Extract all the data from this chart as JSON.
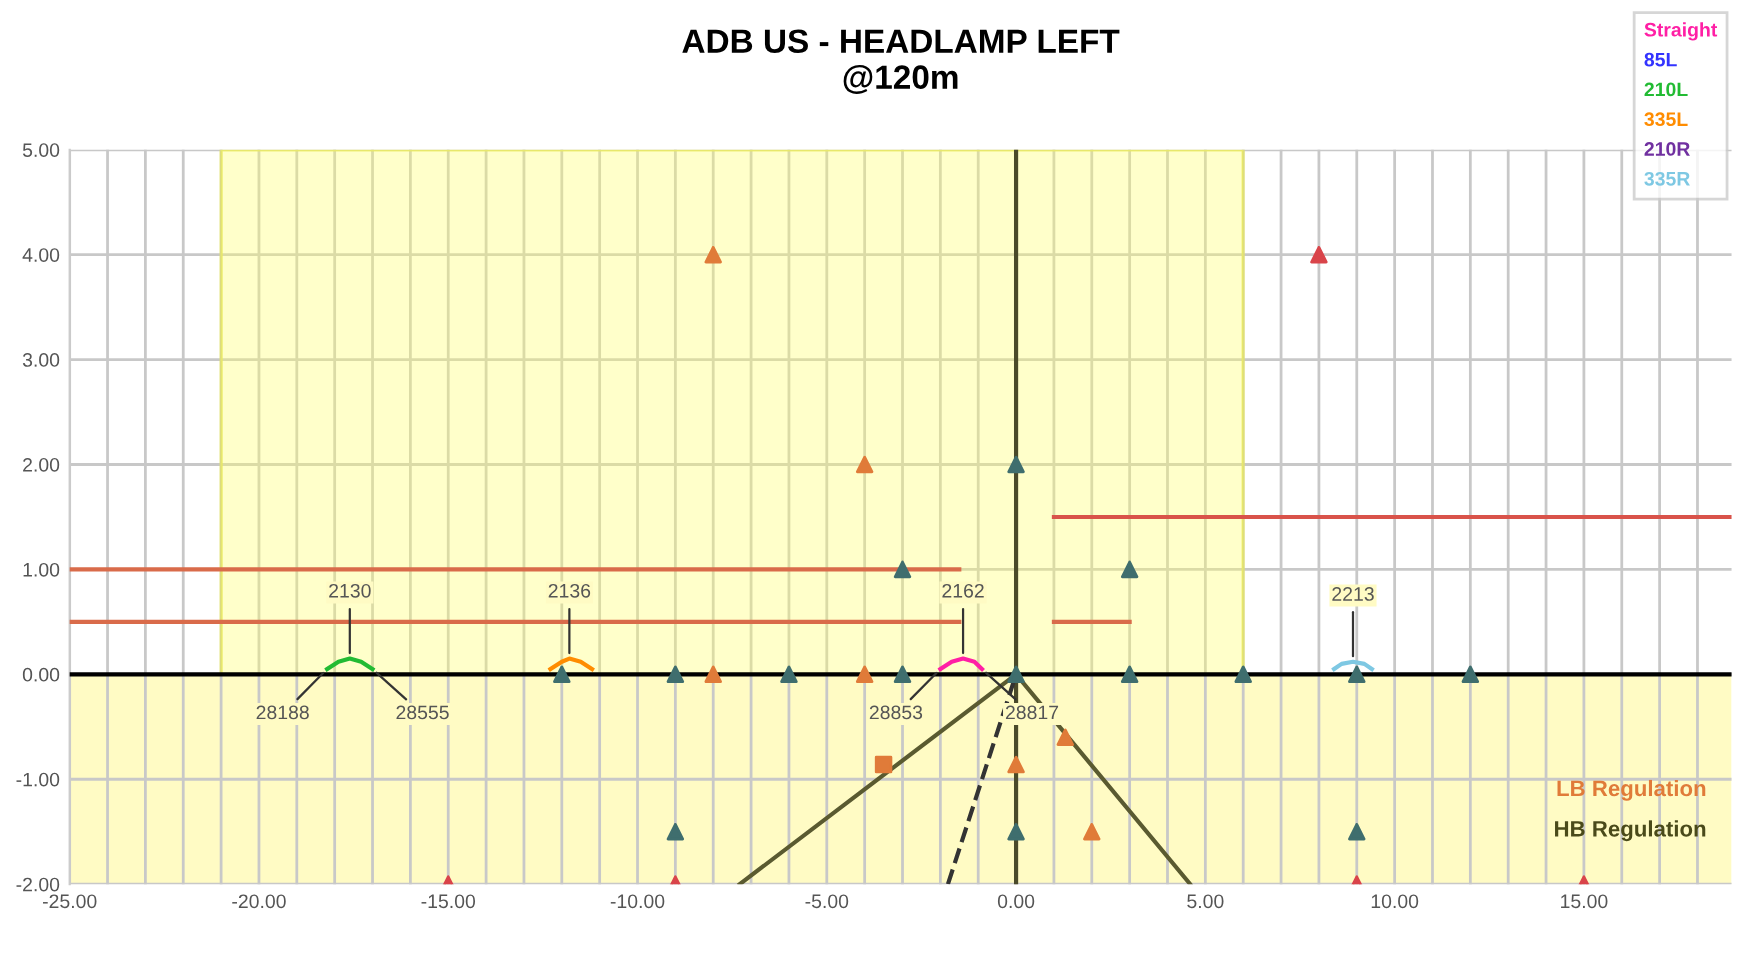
{
  "chart_data": {
    "type": "scatter",
    "title": "ADB US - HEADLAMP LEFT",
    "subtitle": "@120m",
    "xlim": [
      -25,
      18.9
    ],
    "ylim": [
      -2,
      5
    ],
    "xticks": [
      {
        "value": -25,
        "label": "-25.00"
      },
      {
        "value": -24,
        "label": null
      },
      {
        "value": -23,
        "label": null
      },
      {
        "value": -22,
        "label": null
      },
      {
        "value": -21,
        "label": null
      },
      {
        "value": -20,
        "label": "-20.00"
      },
      {
        "value": -19,
        "label": null
      },
      {
        "value": -18,
        "label": null
      },
      {
        "value": -17,
        "label": null
      },
      {
        "value": -16,
        "label": null
      },
      {
        "value": -15,
        "label": "-15.00"
      },
      {
        "value": -14,
        "label": null
      },
      {
        "value": -13,
        "label": null
      },
      {
        "value": -12,
        "label": null
      },
      {
        "value": -11,
        "label": null
      },
      {
        "value": -10,
        "label": "-10.00"
      },
      {
        "value": -9,
        "label": null
      },
      {
        "value": -8,
        "label": null
      },
      {
        "value": -7,
        "label": null
      },
      {
        "value": -6,
        "label": null
      },
      {
        "value": -5,
        "label": "-5.00"
      },
      {
        "value": -4,
        "label": null
      },
      {
        "value": -3,
        "label": null
      },
      {
        "value": -2,
        "label": null
      },
      {
        "value": -1,
        "label": null
      },
      {
        "value": 0,
        "label": "0.00"
      },
      {
        "value": 1,
        "label": null
      },
      {
        "value": 2,
        "label": null
      },
      {
        "value": 3,
        "label": null
      },
      {
        "value": 4,
        "label": null
      },
      {
        "value": 5,
        "label": "5.00"
      },
      {
        "value": 6,
        "label": null
      },
      {
        "value": 7,
        "label": null
      },
      {
        "value": 8,
        "label": null
      },
      {
        "value": 9,
        "label": null
      },
      {
        "value": 10,
        "label": "10.00"
      },
      {
        "value": 11,
        "label": null
      },
      {
        "value": 12,
        "label": null
      },
      {
        "value": 13,
        "label": null
      },
      {
        "value": 14,
        "label": null
      },
      {
        "value": 15,
        "label": "15.00"
      },
      {
        "value": 16,
        "label": null
      },
      {
        "value": 17,
        "label": null
      },
      {
        "value": 18,
        "label": null
      }
    ],
    "yticks": [
      {
        "value": -2,
        "label": "-2.00"
      },
      {
        "value": -1,
        "label": "-1.00"
      },
      {
        "value": 0,
        "label": "0.00"
      },
      {
        "value": 1,
        "label": "1.00"
      },
      {
        "value": 2,
        "label": "2.00"
      },
      {
        "value": 3,
        "label": "3.00"
      },
      {
        "value": 4,
        "label": "4.00"
      },
      {
        "value": 5,
        "label": "5.00"
      }
    ],
    "grid": true,
    "legend": "top right",
    "bands": [
      {
        "axis": "y",
        "from": -2,
        "to": 0,
        "color": "#fffbc4"
      }
    ],
    "series": [
      {
        "type": "area",
        "color": "#ffff66",
        "x": [
          -21,
          6
        ],
        "values": [
          5,
          5
        ]
      },
      {
        "type": "line",
        "color": "#d96b4a",
        "x": [
          -25,
          -1.5
        ],
        "values": [
          1,
          1
        ]
      },
      {
        "type": "line",
        "color": "#d96b4a",
        "x": [
          -25,
          -1.5
        ],
        "values": [
          0.5,
          0.5
        ]
      },
      {
        "type": "line",
        "color": "#d96b4a",
        "x": [
          1,
          3
        ],
        "values": [
          0.5,
          0.5
        ]
      },
      {
        "type": "line",
        "color": "#d9534a",
        "x": [
          1,
          18.9
        ],
        "values": [
          1.5,
          1.5
        ]
      },
      {
        "type": "line",
        "color": "#000000",
        "x": [
          -25,
          18.9
        ],
        "values": [
          0,
          0
        ]
      },
      {
        "type": "line",
        "color": "#4a4a2a",
        "x": [
          0,
          0
        ],
        "values": [
          -2,
          5
        ]
      },
      {
        "type": "line",
        "color": "#5a5a30",
        "x": [
          -7.3,
          0,
          4.6
        ],
        "values": [
          -2,
          0,
          -2
        ]
      },
      {
        "type": "line",
        "color": "#333333",
        "line_style": "dashed",
        "x": [
          -1.8,
          0
        ],
        "values": [
          -2,
          0
        ]
      },
      {
        "marker": "triangle",
        "color": "#3f6e6e",
        "x": [
          -12,
          -9,
          -6,
          -3,
          -3,
          0,
          0,
          3,
          3,
          6,
          9,
          12,
          -9,
          0,
          9
        ],
        "values": [
          0,
          0,
          0,
          0,
          1,
          2,
          0,
          1,
          0,
          0,
          0,
          0,
          -1.5,
          -1.5,
          -1.5
        ]
      },
      {
        "marker": "triangle",
        "color": "#e07b39",
        "x": [
          -8,
          -4,
          -8,
          -4,
          0,
          1.3,
          2
        ],
        "values": [
          4,
          2,
          0,
          0,
          -0.86,
          -0.6,
          -1.5
        ]
      },
      {
        "color": "#e07b39",
        "marker": "square",
        "x": [
          -3.5
        ],
        "values": [
          -0.86
        ]
      },
      {
        "marker": "triangle",
        "color": "#d9444a",
        "x": [
          8,
          -15,
          -9,
          9,
          15
        ],
        "values": [
          4,
          -2,
          -2,
          -2,
          -2
        ]
      },
      {
        "type": "line",
        "name": "Straight",
        "color": "#ff1fa5",
        "x": [
          -2,
          -1.7,
          -1.4,
          -1.1,
          -0.9
        ],
        "values": [
          0.05,
          0.12,
          0.15,
          0.12,
          0.05
        ]
      },
      {
        "type": "line",
        "name": "85L",
        "color": "#3333ff"
      },
      {
        "type": "line",
        "name": "210L",
        "color": "#22bb33",
        "x": [
          -18.2,
          -17.9,
          -17.6,
          -17.3,
          -17.0
        ],
        "values": [
          0.05,
          0.12,
          0.15,
          0.12,
          0.05
        ]
      },
      {
        "type": "line",
        "name": "335L",
        "color": "#ff8c00",
        "x": [
          -12.3,
          -12.0,
          -11.8,
          -11.5,
          -11.2
        ],
        "values": [
          0.05,
          0.12,
          0.15,
          0.12,
          0.05
        ]
      },
      {
        "type": "line",
        "name": "210R",
        "color": "#7030a0"
      },
      {
        "type": "line",
        "name": "335R",
        "color": "#7ec8e3",
        "x": [
          8.4,
          8.6,
          8.9,
          9.2,
          9.4
        ],
        "values": [
          0.05,
          0.1,
          0.12,
          0.1,
          0.05
        ]
      }
    ],
    "annotations": [
      {
        "text": "2130",
        "x": -17.6,
        "y": 0.15
      },
      {
        "text": "28188",
        "x": -18.2,
        "y": 0.05
      },
      {
        "text": "28555",
        "x": -17.0,
        "y": 0.05
      },
      {
        "text": "2136",
        "x": -11.8,
        "y": 0.15
      },
      {
        "text": "2162",
        "x": -1.4,
        "y": 0.15
      },
      {
        "text": "28853",
        "x": -2,
        "y": 0.05
      },
      {
        "text": "28817",
        "x": -0.9,
        "y": 0.05
      },
      {
        "text": "2213",
        "x": 8.9,
        "y": 0.12
      },
      "LB Regulation",
      "HB Regulation"
    ]
  }
}
